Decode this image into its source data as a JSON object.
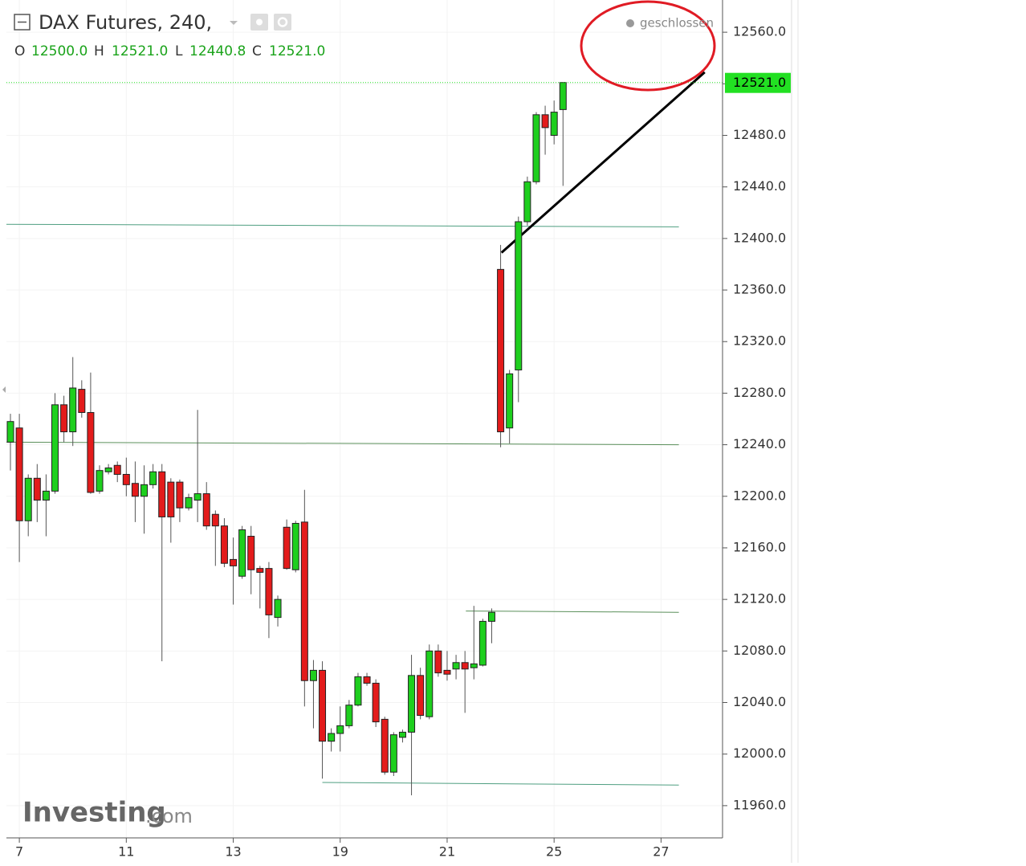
{
  "header": {
    "title": "DAX Futures, 240,",
    "ohlc": [
      {
        "label": "O",
        "value": "12500.0"
      },
      {
        "label": "H",
        "value": "12521.0"
      },
      {
        "label": "L",
        "value": "12440.8"
      },
      {
        "label": "C",
        "value": "12521.0"
      }
    ],
    "status": "geschlossen",
    "logo": "Investing",
    "logo_suffix": ".com"
  },
  "chart_data": {
    "type": "candlestick",
    "open": [
      12242,
      12253,
      12181,
      12214,
      12197,
      12204,
      12271,
      12250,
      12283,
      12265,
      12204,
      12219,
      12224,
      12217,
      12210,
      12200,
      12209,
      12219,
      12211,
      12211,
      12191,
      12197,
      12202,
      12186,
      12177,
      12151,
      12138,
      12169,
      12144,
      12144,
      12106,
      12176,
      12143,
      12180,
      12057,
      12065,
      12010,
      12016,
      12022,
      12038,
      12060,
      12055,
      12027,
      11986,
      12013,
      12017,
      12061,
      12029,
      12080,
      12065,
      12066,
      12071,
      12067,
      12069,
      12103,
      12376,
      12253,
      12298,
      12413,
      12444,
      12496,
      12480,
      12500
    ],
    "high": [
      12264,
      12264,
      12217,
      12225,
      12217,
      12280,
      12278,
      12308,
      12290,
      12296,
      12224,
      12225,
      12227,
      12230,
      12227,
      12224,
      12225,
      12225,
      12214,
      12213,
      12202,
      12267,
      12211,
      12189,
      12183,
      12168,
      12177,
      12177,
      12146,
      12149,
      12123,
      12182,
      12181,
      12205,
      12073,
      12072,
      12020,
      12037,
      12042,
      12063,
      12063,
      12058,
      12029,
      12017,
      12019,
      12077,
      12067,
      12085,
      12085,
      12080,
      12077,
      12080,
      12115,
      12105,
      12113,
      12395,
      12298,
      12417,
      12448,
      12498,
      12503,
      12507,
      12521
    ],
    "low": [
      12220,
      12149,
      12169,
      12180,
      12169,
      12202,
      12242,
      12239,
      12261,
      12202,
      12202,
      12217,
      12211,
      12200,
      12180,
      12171,
      12206,
      12072,
      12164,
      12180,
      12189,
      12180,
      12174,
      12146,
      12145,
      12116,
      12136,
      12124,
      12113,
      12090,
      12099,
      12143,
      12141,
      12037,
      12020,
      11981,
      12002,
      12002,
      12020,
      12037,
      12053,
      12021,
      11984,
      11983,
      12009,
      11968,
      12027,
      12027,
      12060,
      12057,
      12058,
      12032,
      12058,
      12068,
      12086,
      12238,
      12241,
      12273,
      12410,
      12442,
      12465,
      12473,
      12440.8
    ],
    "close": [
      12258,
      12181,
      12214,
      12197,
      12204,
      12271,
      12250,
      12284,
      12265,
      12203,
      12220,
      12222,
      12217,
      12209,
      12200,
      12209,
      12219,
      12184,
      12184,
      12191,
      12199,
      12202,
      12177,
      12177,
      12148,
      12146,
      12174,
      12143,
      12141,
      12108,
      12120,
      12144,
      12179,
      12057,
      12065,
      12010,
      12016,
      12022,
      12038,
      12060,
      12055,
      12025,
      11986,
      12015,
      12017,
      12061,
      12030,
      12080,
      12063,
      12062,
      12071,
      12066,
      12070,
      12103,
      12110,
      12250,
      12295,
      12413,
      12444,
      12496,
      12486,
      12498,
      12521
    ],
    "up_color": "#1ecf1e",
    "down_color": "#e31b1b",
    "xlim": [
      -0.45,
      79.9
    ],
    "xticks": [
      {
        "value": 1,
        "label": "7"
      },
      {
        "value": 13,
        "label": "11"
      },
      {
        "value": 25,
        "label": "13"
      },
      {
        "value": 37,
        "label": "19"
      },
      {
        "value": 49,
        "label": "21"
      },
      {
        "value": 61,
        "label": "25"
      },
      {
        "value": 73,
        "label": "27"
      }
    ],
    "ylim": [
      11935,
      12585
    ],
    "yticks": [
      {
        "value": 11960,
        "label": "11960.0"
      },
      {
        "value": 12000,
        "label": "12000.0"
      },
      {
        "value": 12040,
        "label": "12040.0"
      },
      {
        "value": 12080,
        "label": "12080.0"
      },
      {
        "value": 12120,
        "label": "12120.0"
      },
      {
        "value": 12160,
        "label": "12160.0"
      },
      {
        "value": 12200,
        "label": "12200.0"
      },
      {
        "value": 12240,
        "label": "12240.0"
      },
      {
        "value": 12280,
        "label": "12280.0"
      },
      {
        "value": 12320,
        "label": "12320.0"
      },
      {
        "value": 12360,
        "label": "12360.0"
      },
      {
        "value": 12400,
        "label": "12400.0"
      },
      {
        "value": 12440,
        "label": "12440.0"
      },
      {
        "value": 12480,
        "label": "12480.0"
      },
      {
        "value": 12520,
        "label": "12520.0"
      },
      {
        "value": 12560,
        "label": "12560.0"
      }
    ],
    "hidden_ytick_labels": [
      12520
    ],
    "last_price": 12521,
    "last_price_label": "12521.0",
    "last_price_color": "#22e022",
    "grid": true,
    "drawings": [
      {
        "x": [
          -0.45,
          75
        ],
        "y": [
          12411,
          12409
        ],
        "color": "#4e9e80"
      },
      {
        "x": [
          -0.45,
          75
        ],
        "y": [
          12242,
          12240
        ],
        "color": "#5a8f5a"
      },
      {
        "x": [
          51.1,
          75
        ],
        "y": [
          12111,
          12110
        ],
        "color": "#5a8f5a"
      },
      {
        "x": [
          35,
          75
        ],
        "y": [
          11978,
          11976
        ],
        "color": "#4e9e80"
      },
      {
        "x": [
          55.1,
          77.9
        ],
        "y": [
          12389,
          12529
        ],
        "color": "#000000"
      }
    ]
  }
}
